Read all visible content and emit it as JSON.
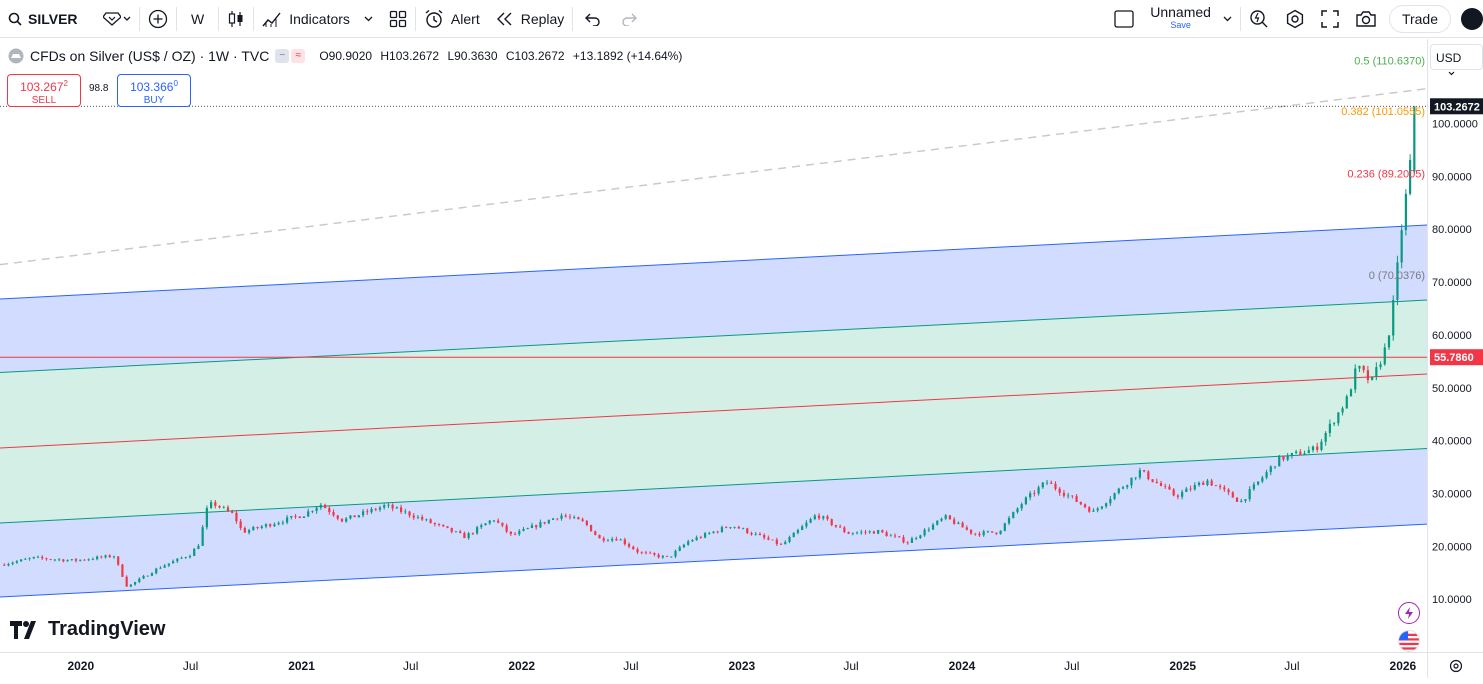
{
  "toolbar": {
    "symbol": "SILVER",
    "interval": "W",
    "indicators_label": "Indicators",
    "alert_label": "Alert",
    "replay_label": "Replay",
    "layout_name": "Unnamed",
    "layout_save": "Save",
    "trade_label": "Trade"
  },
  "legend": {
    "title": "CFDs on Silver (US$ / OZ) · 1W · TVC",
    "open": "O90.9020",
    "high": "H103.2672",
    "low": "L90.3630",
    "close": "C103.2672",
    "change": "+13.1892 (+14.64%)"
  },
  "trade": {
    "sell_price": "103.267",
    "sell_sup": "2",
    "sell_label": "SELL",
    "spread": "98.8",
    "buy_price": "103.366",
    "buy_sup": "0",
    "buy_label": "BUY"
  },
  "price_scale": {
    "currency": "USD",
    "ticks": [
      "100.0000",
      "90.0000",
      "80.0000",
      "70.0000",
      "60.0000",
      "50.0000",
      "40.0000",
      "30.0000",
      "20.0000",
      "10.0000"
    ],
    "tick_values": [
      100,
      90,
      80,
      70,
      60,
      50,
      40,
      30,
      20,
      10
    ],
    "last_price_label": "103.2672",
    "hline_label": "55.7860",
    "hline_value": 55.786
  },
  "time_axis": {
    "labels": [
      "2020",
      "Jul",
      "2021",
      "Jul",
      "2022",
      "Jul",
      "2023",
      "Jul",
      "2024",
      "Jul",
      "2025",
      "Jul",
      "2026"
    ],
    "dates": [
      "2020-01-01",
      "2020-07-01",
      "2021-01-01",
      "2021-07-01",
      "2022-01-01",
      "2022-07-01",
      "2023-01-01",
      "2023-07-01",
      "2024-01-01",
      "2024-07-01",
      "2025-01-01",
      "2025-07-01",
      "2026-01-01"
    ]
  },
  "fib": [
    {
      "label": "0.5 (110.6370)",
      "value": 110.637,
      "color": "#4caf50"
    },
    {
      "label": "0.382 (101.0555)",
      "value": 101.0555,
      "color": "#ff9800"
    },
    {
      "label": "0.236 (89.2005)",
      "value": 89.2005,
      "color": "#f23645"
    },
    {
      "label": "0 (70.0376)",
      "value": 70.0376,
      "color": "#787b86"
    }
  ],
  "brand": {
    "name": "TradingView"
  },
  "colors": {
    "up": "#089981",
    "down": "#f23645",
    "channel_outer": "#2962ff",
    "channel_inner": "#089981",
    "channel_mid": "#f23645",
    "fill_outer": "#d2dcff",
    "fill_inner": "#d4efe6"
  },
  "chart_data": {
    "type": "candlestick",
    "interval": "1W",
    "ylim": [
      0,
      116
    ],
    "x_range": [
      "2019-08-20",
      "2026-02-10"
    ],
    "ohlc_last": {
      "open": 90.902,
      "high": 103.2672,
      "low": 90.363,
      "close": 103.2672
    },
    "channel": {
      "lines": [
        {
          "name": "upper",
          "start": [
            "2019-08-20",
            66.8
          ],
          "end": [
            "2026-02-10",
            80.8
          ]
        },
        {
          "name": "upper-inner",
          "start": [
            "2019-08-20",
            52.9
          ],
          "end": [
            "2026-02-10",
            66.6
          ]
        },
        {
          "name": "mid",
          "start": [
            "2019-08-20",
            38.6
          ],
          "end": [
            "2026-02-10",
            52.6
          ]
        },
        {
          "name": "lower-inner",
          "start": [
            "2019-08-20",
            24.4
          ],
          "end": [
            "2026-02-10",
            38.5
          ]
        },
        {
          "name": "lower",
          "start": [
            "2019-08-20",
            10.4
          ],
          "end": [
            "2026-02-10",
            24.2
          ]
        }
      ],
      "dashed_trend": {
        "start": [
          "2019-08-20",
          73.3
        ],
        "end": [
          "2026-02-10",
          106.6
        ]
      }
    },
    "price_path": [
      [
        "2019-08-20",
        16.5
      ],
      [
        "2019-10-15",
        17.8
      ],
      [
        "2019-12-20",
        17.3
      ],
      [
        "2020-02-25",
        18.2
      ],
      [
        "2020-03-18",
        12.3
      ],
      [
        "2020-05-10",
        16.0
      ],
      [
        "2020-07-01",
        18.5
      ],
      [
        "2020-07-15",
        20.5
      ],
      [
        "2020-07-28",
        26.9
      ],
      [
        "2020-08-06",
        28.2
      ],
      [
        "2020-09-10",
        26.0
      ],
      [
        "2020-09-25",
        22.7
      ],
      [
        "2020-11-10",
        24.2
      ],
      [
        "2021-01-05",
        26.0
      ],
      [
        "2021-02-01",
        28.0
      ],
      [
        "2021-03-10",
        24.9
      ],
      [
        "2021-05-20",
        27.7
      ],
      [
        "2021-07-01",
        26.0
      ],
      [
        "2021-09-29",
        21.8
      ],
      [
        "2021-11-15",
        25.2
      ],
      [
        "2021-12-15",
        22.0
      ],
      [
        "2022-03-07",
        25.9
      ],
      [
        "2022-04-15",
        24.5
      ],
      [
        "2022-05-10",
        21.4
      ],
      [
        "2022-06-10",
        21.5
      ],
      [
        "2022-07-15",
        18.8
      ],
      [
        "2022-09-01",
        17.8
      ],
      [
        "2022-10-05",
        21.0
      ],
      [
        "2022-12-15",
        24.0
      ],
      [
        "2023-03-08",
        20.2
      ],
      [
        "2023-05-05",
        26.0
      ],
      [
        "2023-06-25",
        22.5
      ],
      [
        "2023-08-15",
        22.8
      ],
      [
        "2023-10-03",
        20.8
      ],
      [
        "2023-12-04",
        25.5
      ],
      [
        "2024-01-20",
        22.4
      ],
      [
        "2024-03-01",
        22.7
      ],
      [
        "2024-04-12",
        28.5
      ],
      [
        "2024-05-20",
        32.2
      ],
      [
        "2024-08-06",
        26.5
      ],
      [
        "2024-10-22",
        34.2
      ],
      [
        "2024-12-20",
        29.5
      ],
      [
        "2025-02-10",
        32.5
      ],
      [
        "2025-04-07",
        28.4
      ],
      [
        "2025-06-09",
        36.5
      ],
      [
        "2025-08-10",
        38.5
      ],
      [
        "2025-10-01",
        48.0
      ],
      [
        "2025-10-17",
        54.0
      ],
      [
        "2025-11-10",
        51.0
      ],
      [
        "2025-12-05",
        58.0
      ],
      [
        "2025-12-18",
        67.0
      ],
      [
        "2025-12-29",
        79.5
      ],
      [
        "2026-01-12",
        90.9
      ],
      [
        "2026-01-20",
        103.2672
      ]
    ]
  }
}
